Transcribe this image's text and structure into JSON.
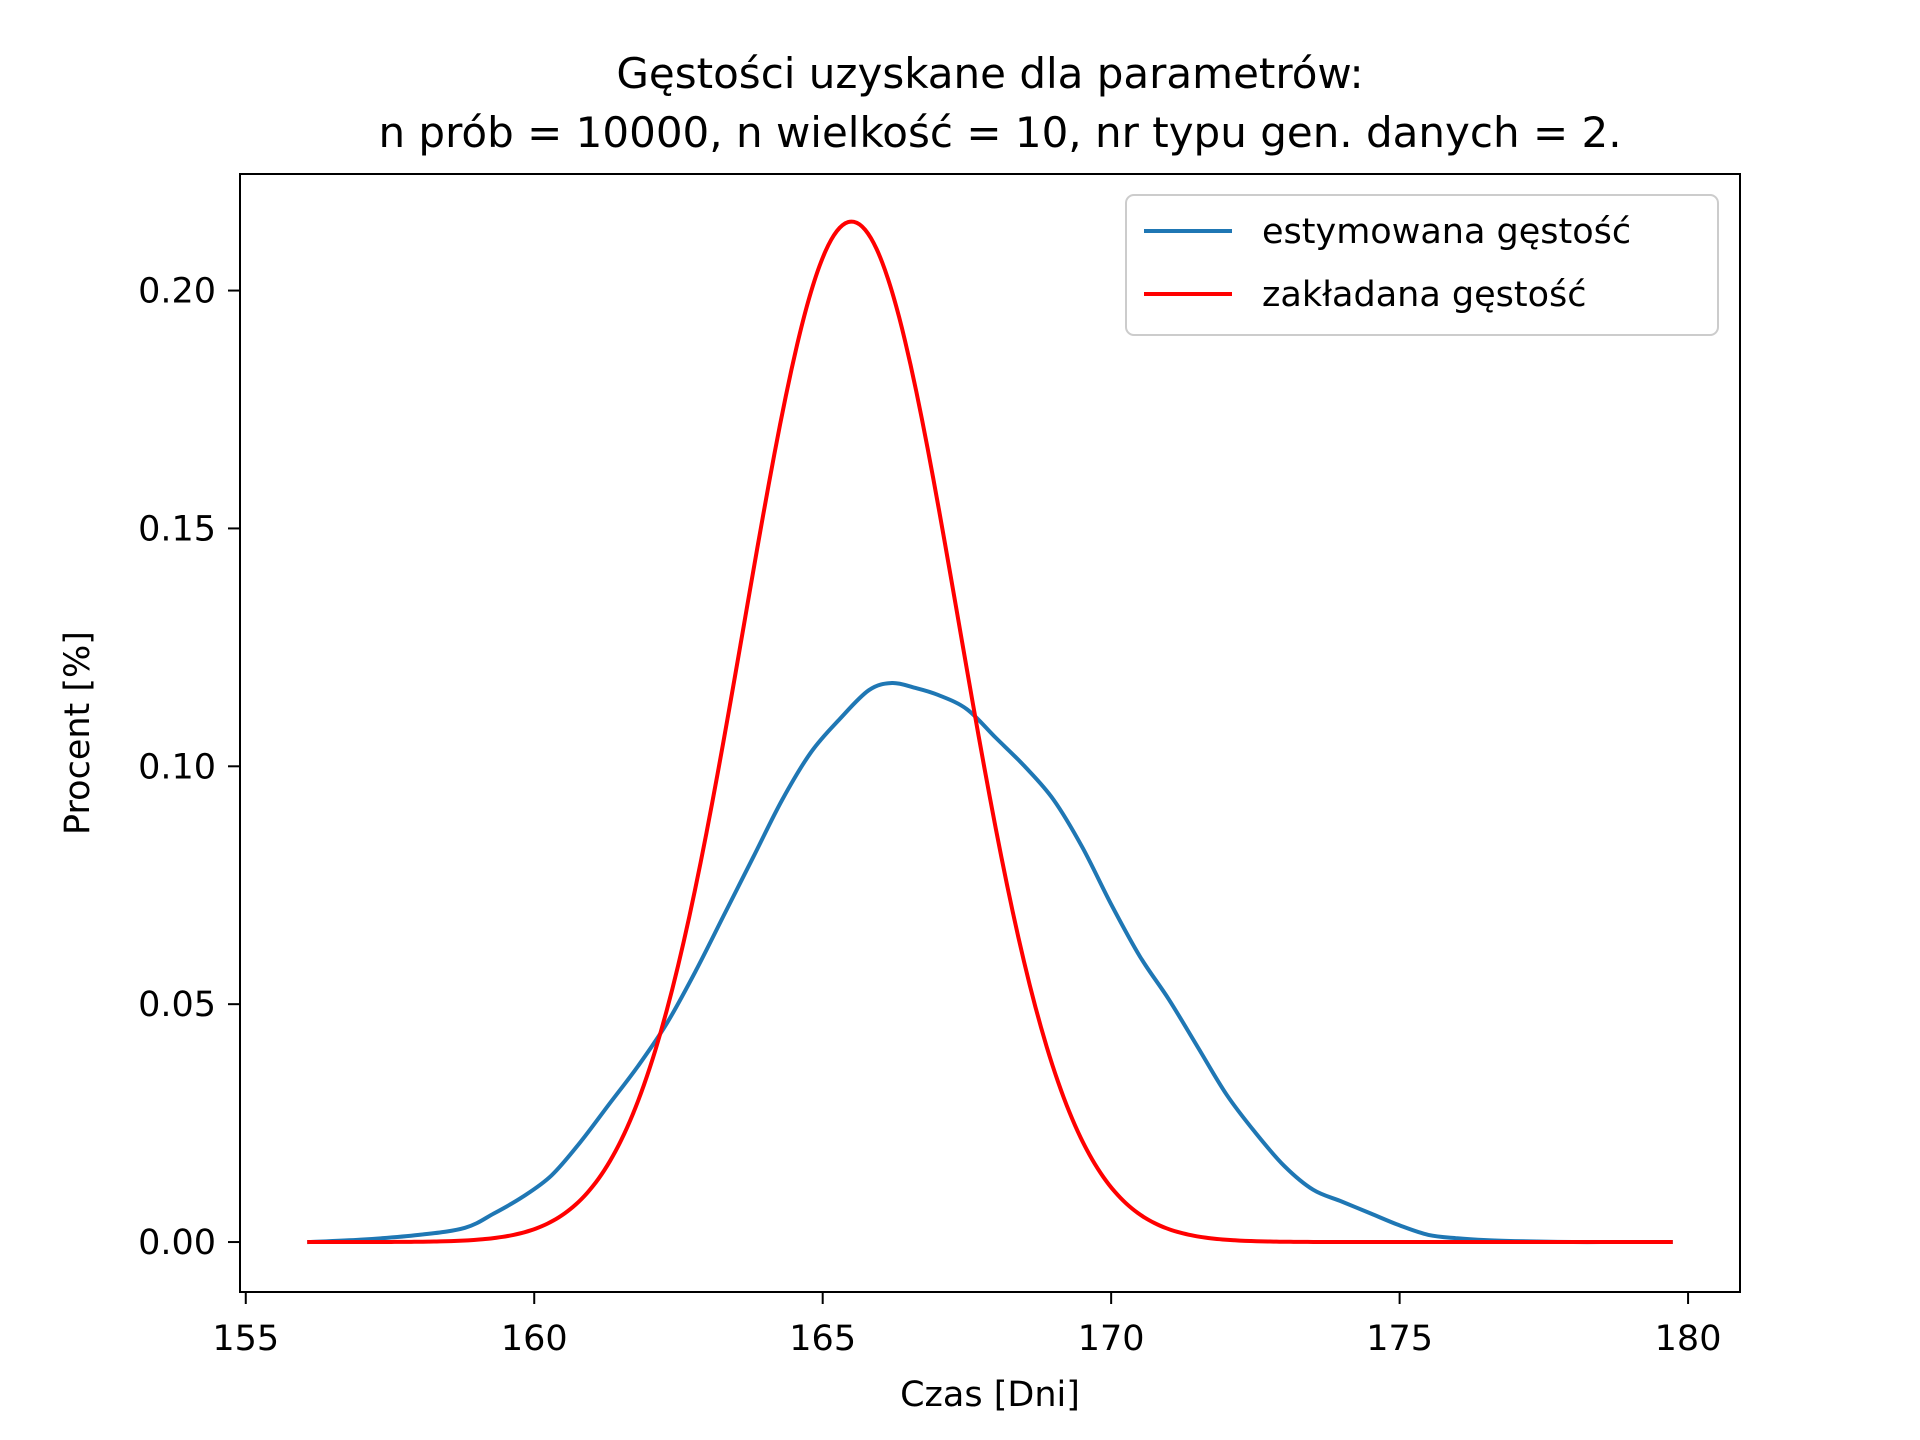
{
  "chart_data": {
    "type": "line",
    "title_line1": "Gęstości uzyskane dla parametrów:",
    "title_line2": "n prób = 10000, n wielkość = 10, nr typu gen. danych = 2.",
    "xlabel": "Czas [Dni]",
    "ylabel": "Procent [%]",
    "xlim": [
      154.9,
      180.9
    ],
    "ylim": [
      -0.0105,
      0.2245
    ],
    "xticks": [
      155,
      160,
      165,
      170,
      175,
      180
    ],
    "xtick_labels": [
      "155",
      "160",
      "165",
      "170",
      "175",
      "180"
    ],
    "yticks": [
      0.0,
      0.05,
      0.1,
      0.15,
      0.2
    ],
    "ytick_labels": [
      "0.00",
      "0.05",
      "0.10",
      "0.15",
      "0.20"
    ],
    "grid": false,
    "legend_position": "top-right",
    "series": [
      {
        "name": "estymowana gęstość",
        "color": "#1f77b4",
        "x": [
          156.1,
          157.0,
          158.0,
          158.8,
          159.3,
          159.8,
          160.3,
          160.8,
          161.3,
          161.8,
          162.3,
          162.8,
          163.3,
          163.8,
          164.3,
          164.8,
          165.3,
          165.8,
          166.2,
          166.6,
          167.0,
          167.5,
          168.0,
          168.5,
          169.0,
          169.5,
          170.0,
          170.5,
          171.0,
          171.5,
          172.0,
          172.5,
          173.0,
          173.5,
          174.0,
          174.5,
          175.0,
          175.5,
          176.0,
          176.5,
          177.0,
          177.5,
          178.0,
          178.5,
          179.0,
          179.7
        ],
        "y": [
          0.0,
          0.0005,
          0.0015,
          0.003,
          0.006,
          0.0095,
          0.014,
          0.021,
          0.029,
          0.037,
          0.046,
          0.057,
          0.069,
          0.081,
          0.093,
          0.103,
          0.11,
          0.116,
          0.1175,
          0.1165,
          0.115,
          0.112,
          0.106,
          0.1,
          0.093,
          0.083,
          0.071,
          0.06,
          0.051,
          0.041,
          0.031,
          0.023,
          0.016,
          0.011,
          0.0085,
          0.006,
          0.0035,
          0.0015,
          0.0008,
          0.0004,
          0.0002,
          0.0001,
          0.0,
          0.0,
          0.0,
          0.0
        ]
      },
      {
        "name": "zakładana gęstość",
        "color": "#ff0000",
        "gaussian": {
          "mean": 165.5,
          "sd": 1.86,
          "peak": 0.2145
        },
        "x_range": [
          156.1,
          179.7
        ]
      }
    ]
  }
}
